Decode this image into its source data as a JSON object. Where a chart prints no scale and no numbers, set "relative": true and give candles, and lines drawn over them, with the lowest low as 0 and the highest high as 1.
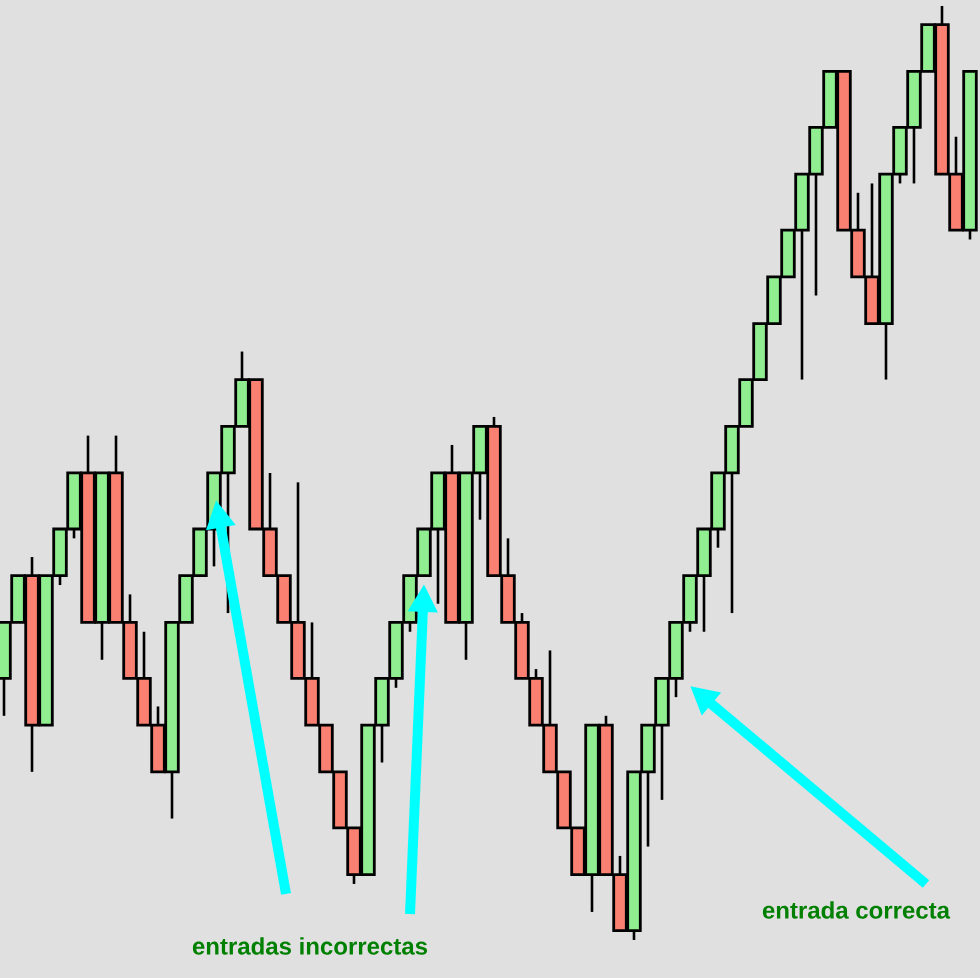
{
  "chart_data": {
    "type": "candlestick",
    "relative": true,
    "categories": [
      null,
      null,
      null,
      null,
      null,
      null,
      null,
      null,
      null,
      null,
      null,
      null,
      null,
      null,
      null,
      null,
      null,
      null,
      null,
      null,
      null,
      null,
      null,
      null,
      null,
      null,
      null,
      null,
      null,
      null,
      null,
      null,
      null,
      null,
      null,
      null,
      null,
      null,
      null,
      null,
      null,
      null,
      null,
      null,
      null,
      null,
      null,
      null,
      null,
      null,
      null,
      null,
      null,
      null,
      null,
      null,
      null,
      null,
      null,
      null,
      null,
      null,
      null,
      null,
      null,
      null,
      null,
      null,
      null,
      null
    ],
    "ohlc": [
      [
        0.28,
        0.34,
        0.24,
        0.34
      ],
      [
        0.34,
        0.39,
        0.34,
        0.39
      ],
      [
        0.39,
        0.41,
        0.18,
        0.23
      ],
      [
        0.23,
        0.39,
        0.23,
        0.39
      ],
      [
        0.39,
        0.44,
        0.38,
        0.44
      ],
      [
        0.44,
        0.5,
        0.43,
        0.5
      ],
      [
        0.5,
        0.54,
        0.34,
        0.34
      ],
      [
        0.34,
        0.5,
        0.3,
        0.5
      ],
      [
        0.5,
        0.54,
        0.34,
        0.34
      ],
      [
        0.34,
        0.37,
        0.28,
        0.28
      ],
      [
        0.28,
        0.33,
        0.23,
        0.23
      ],
      [
        0.23,
        0.25,
        0.18,
        0.18
      ],
      [
        0.18,
        0.34,
        0.13,
        0.34
      ],
      [
        0.34,
        0.39,
        0.34,
        0.39
      ],
      [
        0.39,
        0.44,
        0.39,
        0.44
      ],
      [
        0.44,
        0.5,
        0.4,
        0.5
      ],
      [
        0.5,
        0.55,
        0.35,
        0.55
      ],
      [
        0.55,
        0.63,
        0.55,
        0.6
      ],
      [
        0.6,
        0.6,
        0.44,
        0.44
      ],
      [
        0.44,
        0.5,
        0.39,
        0.39
      ],
      [
        0.39,
        0.39,
        0.34,
        0.34
      ],
      [
        0.34,
        0.49,
        0.28,
        0.28
      ],
      [
        0.28,
        0.34,
        0.23,
        0.23
      ],
      [
        0.23,
        0.23,
        0.18,
        0.18
      ],
      [
        0.18,
        0.18,
        0.12,
        0.12
      ],
      [
        0.12,
        0.12,
        0.06,
        0.07
      ],
      [
        0.07,
        0.23,
        0.07,
        0.23
      ],
      [
        0.23,
        0.28,
        0.19,
        0.28
      ],
      [
        0.28,
        0.34,
        0.27,
        0.34
      ],
      [
        0.34,
        0.39,
        0.33,
        0.39
      ],
      [
        0.39,
        0.44,
        0.39,
        0.44
      ],
      [
        0.44,
        0.5,
        0.36,
        0.5
      ],
      [
        0.5,
        0.53,
        0.34,
        0.34
      ],
      [
        0.34,
        0.5,
        0.3,
        0.5
      ],
      [
        0.5,
        0.55,
        0.45,
        0.55
      ],
      [
        0.55,
        0.56,
        0.39,
        0.39
      ],
      [
        0.39,
        0.43,
        0.34,
        0.34
      ],
      [
        0.34,
        0.35,
        0.28,
        0.28
      ],
      [
        0.28,
        0.29,
        0.23,
        0.23
      ],
      [
        0.23,
        0.31,
        0.18,
        0.18
      ],
      [
        0.18,
        0.18,
        0.12,
        0.12
      ],
      [
        0.12,
        0.12,
        0.07,
        0.07
      ],
      [
        0.07,
        0.23,
        0.03,
        0.23
      ],
      [
        0.23,
        0.24,
        0.07,
        0.07
      ],
      [
        0.07,
        0.09,
        0.01,
        0.01
      ],
      [
        0.01,
        0.18,
        0,
        0.18
      ],
      [
        0.18,
        0.23,
        0.1,
        0.23
      ],
      [
        0.23,
        0.28,
        0.15,
        0.28
      ],
      [
        0.28,
        0.34,
        0.26,
        0.34
      ],
      [
        0.34,
        0.39,
        0.33,
        0.39
      ],
      [
        0.39,
        0.44,
        0.33,
        0.44
      ],
      [
        0.44,
        0.5,
        0.42,
        0.5
      ],
      [
        0.5,
        0.55,
        0.35,
        0.55
      ],
      [
        0.55,
        0.6,
        0.55,
        0.6
      ],
      [
        0.6,
        0.66,
        0.6,
        0.66
      ],
      [
        0.66,
        0.71,
        0.66,
        0.71
      ],
      [
        0.71,
        0.76,
        0.71,
        0.76
      ],
      [
        0.76,
        0.82,
        0.6,
        0.82
      ],
      [
        0.82,
        0.87,
        0.69,
        0.87
      ],
      [
        0.87,
        0.93,
        0.87,
        0.93
      ],
      [
        0.93,
        0.93,
        0.76,
        0.76
      ],
      [
        0.76,
        0.8,
        0.71,
        0.71
      ],
      [
        0.71,
        0.81,
        0.66,
        0.66
      ],
      [
        0.66,
        0.82,
        0.6,
        0.82
      ],
      [
        0.82,
        0.87,
        0.81,
        0.87
      ],
      [
        0.87,
        0.93,
        0.81,
        0.93
      ],
      [
        0.93,
        0.98,
        0.93,
        0.98
      ],
      [
        0.98,
        1,
        0.82,
        0.82
      ],
      [
        0.82,
        0.86,
        0.76,
        0.76
      ],
      [
        0.76,
        0.93,
        0.75,
        0.93
      ]
    ],
    "colors": [
      "#90ee90",
      "#90ee90",
      "#fa8072",
      "#90ee90",
      "#90ee90",
      "#90ee90",
      "#fa8072",
      "#90ee90",
      "#fa8072",
      "#fa8072",
      "#fa8072",
      "#fa8072",
      "#90ee90",
      "#90ee90",
      "#90ee90",
      "#90ee90",
      "#90ee90",
      "#90ee90",
      "#fa8072",
      "#fa8072",
      "#fa8072",
      "#fa8072",
      "#fa8072",
      "#fa8072",
      "#fa8072",
      "#fa8072",
      "#90ee90",
      "#90ee90",
      "#90ee90",
      "#90ee90",
      "#90ee90",
      "#90ee90",
      "#fa8072",
      "#90ee90",
      "#90ee90",
      "#fa8072",
      "#fa8072",
      "#fa8072",
      "#fa8072",
      "#fa8072",
      "#fa8072",
      "#fa8072",
      "#90ee90",
      "#fa8072",
      "#fa8072",
      "#90ee90",
      "#90ee90",
      "#90ee90",
      "#90ee90",
      "#90ee90",
      "#90ee90",
      "#90ee90",
      "#90ee90",
      "#90ee90",
      "#90ee90",
      "#90ee90",
      "#90ee90",
      "#90ee90",
      "#90ee90",
      "#90ee90",
      "#fa8072",
      "#fa8072",
      "#fa8072",
      "#90ee90",
      "#90ee90",
      "#90ee90",
      "#90ee90",
      "#fa8072",
      "#fa8072",
      "#90ee90"
    ],
    "annotations": [
      "entradas incorrectas",
      "entrada correcta"
    ]
  }
}
